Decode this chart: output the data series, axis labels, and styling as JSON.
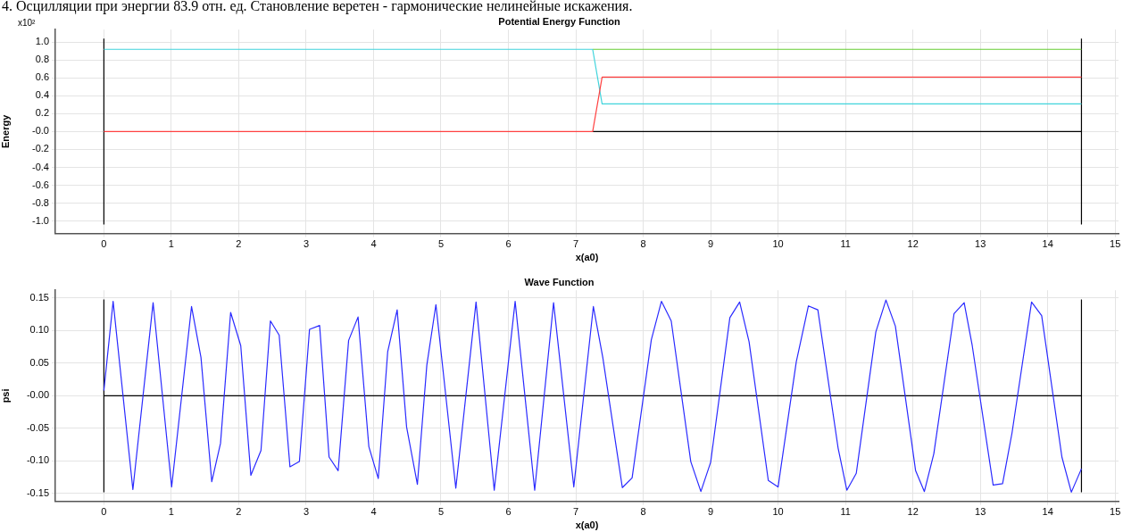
{
  "chart_data": [
    {
      "type": "line",
      "title": "Potential Energy Function",
      "xlabel": "x(a0)",
      "ylabel": "Energy",
      "annotations": [
        "4. Осцилляции при энергии 83.9 отн. ед. Становление веретен - гармонические нелинейные искажения.",
        "x10²"
      ],
      "xlim": [
        -0.72,
        15.05
      ],
      "xticks": [
        0,
        1,
        2,
        3,
        4,
        5,
        6,
        7,
        8,
        9,
        10,
        11,
        12,
        13,
        14,
        15
      ],
      "ylim": [
        -1.14,
        1.14
      ],
      "yticks": [
        {
          "value": 1,
          "label": "1.0"
        },
        {
          "value": 0.8,
          "label": "0.8"
        },
        {
          "value": 0.6,
          "label": "0.6"
        },
        {
          "value": 0.4,
          "label": "0.4"
        },
        {
          "value": 0.2,
          "label": "0.2"
        },
        {
          "value": 0,
          "label": "-0.0"
        },
        {
          "value": -0.2,
          "label": "-0.2"
        },
        {
          "value": -0.4,
          "label": "-0.4"
        },
        {
          "value": -0.6,
          "label": "-0.6"
        },
        {
          "value": -0.8,
          "label": "-0.8"
        },
        {
          "value": -1,
          "label": "-1.0"
        }
      ],
      "grid": true,
      "series": [
        {
          "color": "#000000",
          "x": [
            0,
            0
          ],
          "values": [
            -1.04,
            1.04
          ]
        },
        {
          "color": "#000000",
          "x": [
            14.5,
            14.5
          ],
          "values": [
            -1.04,
            1.04
          ]
        },
        {
          "color": "#000000",
          "x": [
            7.25,
            14.5
          ],
          "values": [
            0,
            0
          ]
        },
        {
          "color": "#66cc33",
          "x": [
            7.25,
            14.5
          ],
          "values": [
            0.92,
            0.92
          ]
        },
        {
          "color": "#40d4dc",
          "x": [
            0,
            7.25,
            7.39,
            14.5
          ],
          "values": [
            0.92,
            0.92,
            0.31,
            0.31
          ]
        },
        {
          "color": "#ff4040",
          "x": [
            0,
            7.25,
            7.39,
            14.5
          ],
          "values": [
            0,
            0,
            0.61,
            0.61
          ]
        }
      ]
    },
    {
      "type": "line",
      "title": "Wave Function",
      "xlabel": "x(a0)",
      "ylabel": "psi",
      "xlim": [
        -0.72,
        15.05
      ],
      "xticks": [
        0,
        1,
        2,
        3,
        4,
        5,
        6,
        7,
        8,
        9,
        10,
        11,
        12,
        13,
        14,
        15
      ],
      "ylim": [
        -0.162,
        0.162
      ],
      "yticks": [
        {
          "value": 0.15,
          "label": "0.15"
        },
        {
          "value": 0.1,
          "label": "0.10"
        },
        {
          "value": 0.05,
          "label": "0.05"
        },
        {
          "value": 0,
          "label": "-0.00"
        },
        {
          "value": -0.05,
          "label": "-0.05"
        },
        {
          "value": -0.1,
          "label": "-0.10"
        },
        {
          "value": -0.15,
          "label": "-0.15"
        }
      ],
      "grid": true,
      "series": [
        {
          "color": "#000000",
          "x": [
            0,
            0
          ],
          "values": [
            -0.148,
            0.148
          ]
        },
        {
          "color": "#000000",
          "x": [
            14.5,
            14.5
          ],
          "values": [
            -0.148,
            0.148
          ]
        },
        {
          "color": "#000000",
          "x": [
            0,
            14.5
          ],
          "values": [
            0,
            0
          ]
        },
        {
          "color": "#2a2aff",
          "x": [
            0,
            0.137,
            0.43,
            0.73,
            1.005,
            1.3,
            1.44,
            1.6,
            1.73,
            1.88,
            2.03,
            2.18,
            2.33,
            2.47,
            2.6,
            2.76,
            2.9,
            3.05,
            3.2,
            3.34,
            3.475,
            3.63,
            3.77,
            3.93,
            4.07,
            4.21,
            4.35,
            4.49,
            4.65,
            4.79,
            4.925,
            5.22,
            5.52,
            5.79,
            6.1,
            6.39,
            6.67,
            6.97,
            7.26,
            7.4,
            7.69,
            7.835,
            8.12,
            8.27,
            8.415,
            8.705,
            8.855,
            9.0,
            9.285,
            9.43,
            9.57,
            9.855,
            10.0,
            10.27,
            10.45,
            10.59,
            10.89,
            11.02,
            11.16,
            11.45,
            11.6,
            11.74,
            12.04,
            12.17,
            12.31,
            12.61,
            12.76,
            12.88,
            13.19,
            13.33,
            13.47,
            13.76,
            13.91,
            14.21,
            14.35,
            14.5
          ],
          "values": [
            0.008,
            0.145,
            -0.144,
            0.143,
            -0.14,
            0.137,
            0.059,
            -0.132,
            -0.073,
            0.128,
            0.077,
            -0.122,
            -0.084,
            0.115,
            0.093,
            -0.109,
            -0.101,
            0.102,
            0.108,
            -0.094,
            -0.115,
            0.085,
            0.121,
            -0.078,
            -0.127,
            0.068,
            0.132,
            -0.048,
            -0.136,
            0.047,
            0.14,
            -0.142,
            0.144,
            -0.145,
            0.145,
            -0.145,
            0.143,
            -0.14,
            0.137,
            0.059,
            -0.141,
            -0.126,
            0.086,
            0.145,
            0.115,
            -0.101,
            -0.147,
            -0.102,
            0.12,
            0.144,
            0.083,
            -0.13,
            -0.14,
            0.052,
            0.138,
            0.132,
            -0.08,
            -0.145,
            -0.119,
            0.098,
            0.147,
            0.107,
            -0.115,
            -0.147,
            -0.089,
            0.126,
            0.143,
            0.077,
            -0.137,
            -0.135,
            -0.057,
            0.144,
            0.123,
            -0.094,
            -0.148,
            -0.112
          ]
        }
      ]
    }
  ]
}
